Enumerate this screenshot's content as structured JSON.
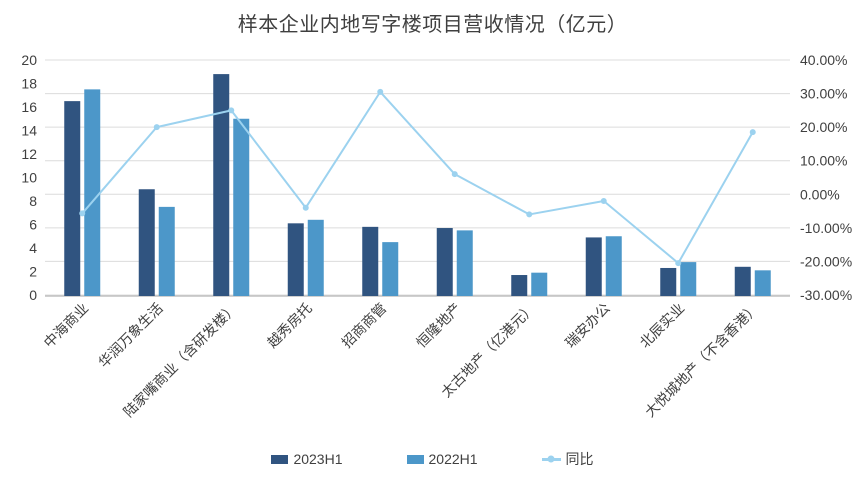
{
  "title": "样本企业内地写字楼项目营收情况（亿元）",
  "colors": {
    "bar_2023": "#305480",
    "bar_2022": "#4C97C9",
    "line": "#9CD2EF",
    "grid": "#DCDCDC",
    "axis_line": "#C0C0C0",
    "tick_text": "#404040",
    "category_text": "#404040",
    "title_text": "#3F3F3F"
  },
  "legend": [
    {
      "label": "2023H1",
      "marker": "square"
    },
    {
      "label": "2022H1",
      "marker": "square"
    },
    {
      "label": "同比",
      "marker": "line-dot"
    }
  ],
  "axes": {
    "left_ticks": [
      "20",
      "18",
      "16",
      "14",
      "12",
      "10",
      "8",
      "6",
      "4",
      "2",
      "0"
    ],
    "right_ticks": [
      "40.00%",
      "30.00%",
      "20.00%",
      "10.00%",
      "0.00%",
      "-10.00%",
      "-20.00%",
      "-30.00%"
    ]
  },
  "chart_data": {
    "type": "bar",
    "subtype": "grouped-bars-with-line-overlay",
    "title": "样本企业内地写字楼项目营收情况（亿元）",
    "categories": [
      "中海商业",
      "华润万象生活",
      "陆家嘴商业（含研发楼）",
      "越秀房托",
      "招商商管",
      "恒隆地产",
      "太古地产（亿港元）",
      "瑞安办公",
      "北辰实业",
      "大悦城地产（不含香港）"
    ],
    "series": [
      {
        "name": "2023H1",
        "type": "bar",
        "axis": "left",
        "values": [
          16.5,
          9.0,
          18.8,
          6.1,
          5.8,
          5.7,
          1.7,
          4.9,
          2.3,
          2.4
        ]
      },
      {
        "name": "2022H1",
        "type": "bar",
        "axis": "left",
        "values": [
          17.5,
          7.5,
          15.0,
          6.4,
          4.5,
          5.5,
          1.9,
          5.0,
          2.8,
          2.1
        ]
      },
      {
        "name": "同比",
        "type": "line",
        "axis": "right",
        "unit": "percent",
        "values": [
          -5.7,
          20.0,
          25.0,
          -4.0,
          30.5,
          6.0,
          -6.0,
          -2.0,
          -20.5,
          18.5
        ]
      }
    ],
    "left_axis": {
      "min": 0,
      "max": 20,
      "step": 2
    },
    "right_axis": {
      "min": -30,
      "max": 40,
      "step": 10,
      "format": "percent-2dp"
    },
    "grid": true,
    "legend_position": "bottom",
    "category_label_rotation_deg": 45
  }
}
